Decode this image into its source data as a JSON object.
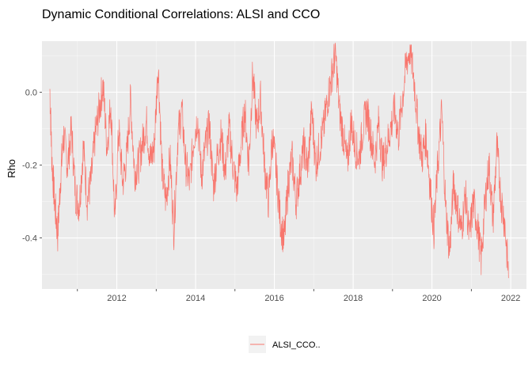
{
  "chart_data": {
    "type": "line",
    "title": "Dynamic Conditional Correlations: ALSI and CCO",
    "xlabel": "",
    "ylabel": "Rho",
    "xlim": [
      2010.1,
      2022.4
    ],
    "ylim": [
      -0.54,
      0.14
    ],
    "x_ticks": [
      2012,
      2014,
      2016,
      2018,
      2020,
      2022
    ],
    "x_minor_ticks": [
      2011,
      2013,
      2015,
      2017,
      2019,
      2021
    ],
    "y_ticks": [
      0.0,
      -0.2,
      -0.4
    ],
    "y_tick_labels": [
      "0.0",
      "-0.2",
      "-0.4"
    ],
    "grid": true,
    "legend_position": "bottom",
    "series": [
      {
        "name": "ALSI_CCO..",
        "color": "#F8766D",
        "x": [
          2010.3,
          2010.35,
          2010.42,
          2010.5,
          2010.58,
          2010.65,
          2010.75,
          2010.85,
          2010.95,
          2011.05,
          2011.15,
          2011.25,
          2011.35,
          2011.45,
          2011.55,
          2011.65,
          2011.75,
          2011.85,
          2011.95,
          2012.05,
          2012.15,
          2012.25,
          2012.35,
          2012.45,
          2012.55,
          2012.65,
          2012.75,
          2012.85,
          2012.95,
          2013.05,
          2013.15,
          2013.25,
          2013.35,
          2013.45,
          2013.55,
          2013.65,
          2013.75,
          2013.85,
          2013.95,
          2014.05,
          2014.15,
          2014.25,
          2014.35,
          2014.45,
          2014.55,
          2014.65,
          2014.75,
          2014.85,
          2014.95,
          2015.05,
          2015.15,
          2015.25,
          2015.35,
          2015.45,
          2015.55,
          2015.65,
          2015.75,
          2015.85,
          2015.95,
          2016.05,
          2016.15,
          2016.25,
          2016.35,
          2016.45,
          2016.55,
          2016.65,
          2016.75,
          2016.85,
          2016.95,
          2017.05,
          2017.15,
          2017.25,
          2017.35,
          2017.45,
          2017.55,
          2017.65,
          2017.75,
          2017.85,
          2017.95,
          2018.05,
          2018.15,
          2018.25,
          2018.35,
          2018.45,
          2018.55,
          2018.65,
          2018.75,
          2018.85,
          2018.95,
          2019.05,
          2019.15,
          2019.25,
          2019.35,
          2019.45,
          2019.55,
          2019.65,
          2019.75,
          2019.85,
          2019.95,
          2020.05,
          2020.15,
          2020.25,
          2020.35,
          2020.45,
          2020.55,
          2020.65,
          2020.75,
          2020.85,
          2020.95,
          2021.05,
          2021.15,
          2021.25,
          2021.35,
          2021.45,
          2021.55,
          2021.65,
          2021.75,
          2021.85,
          2021.95
        ],
        "y": [
          0.01,
          -0.18,
          -0.3,
          -0.39,
          -0.22,
          -0.12,
          -0.2,
          -0.1,
          -0.28,
          -0.31,
          -0.15,
          -0.3,
          -0.24,
          -0.12,
          -0.05,
          0.02,
          -0.15,
          -0.03,
          -0.36,
          -0.1,
          -0.25,
          -0.18,
          -0.02,
          -0.22,
          -0.2,
          -0.14,
          -0.08,
          -0.19,
          -0.15,
          0.08,
          -0.22,
          -0.3,
          -0.18,
          -0.38,
          -0.12,
          -0.05,
          -0.2,
          -0.25,
          -0.13,
          -0.07,
          -0.23,
          -0.15,
          -0.09,
          -0.26,
          -0.18,
          -0.12,
          -0.22,
          -0.1,
          -0.2,
          -0.27,
          -0.15,
          -0.05,
          -0.2,
          0.05,
          -0.1,
          -0.02,
          -0.2,
          -0.3,
          -0.12,
          -0.22,
          -0.35,
          -0.41,
          -0.25,
          -0.18,
          -0.3,
          -0.22,
          -0.15,
          -0.21,
          -0.05,
          -0.2,
          -0.15,
          -0.1,
          -0.02,
          0.04,
          0.11,
          -0.05,
          -0.12,
          -0.2,
          -0.08,
          -0.15,
          -0.18,
          -0.1,
          -0.05,
          -0.12,
          -0.19,
          -0.08,
          -0.2,
          -0.15,
          -0.1,
          -0.05,
          -0.12,
          -0.02,
          0.08,
          0.12,
          0.03,
          -0.1,
          -0.18,
          -0.12,
          -0.25,
          -0.38,
          -0.2,
          -0.05,
          -0.32,
          -0.44,
          -0.25,
          -0.32,
          -0.38,
          -0.28,
          -0.4,
          -0.3,
          -0.36,
          -0.46,
          -0.3,
          -0.2,
          -0.35,
          -0.15,
          -0.29,
          -0.36,
          -0.51
        ]
      }
    ]
  }
}
